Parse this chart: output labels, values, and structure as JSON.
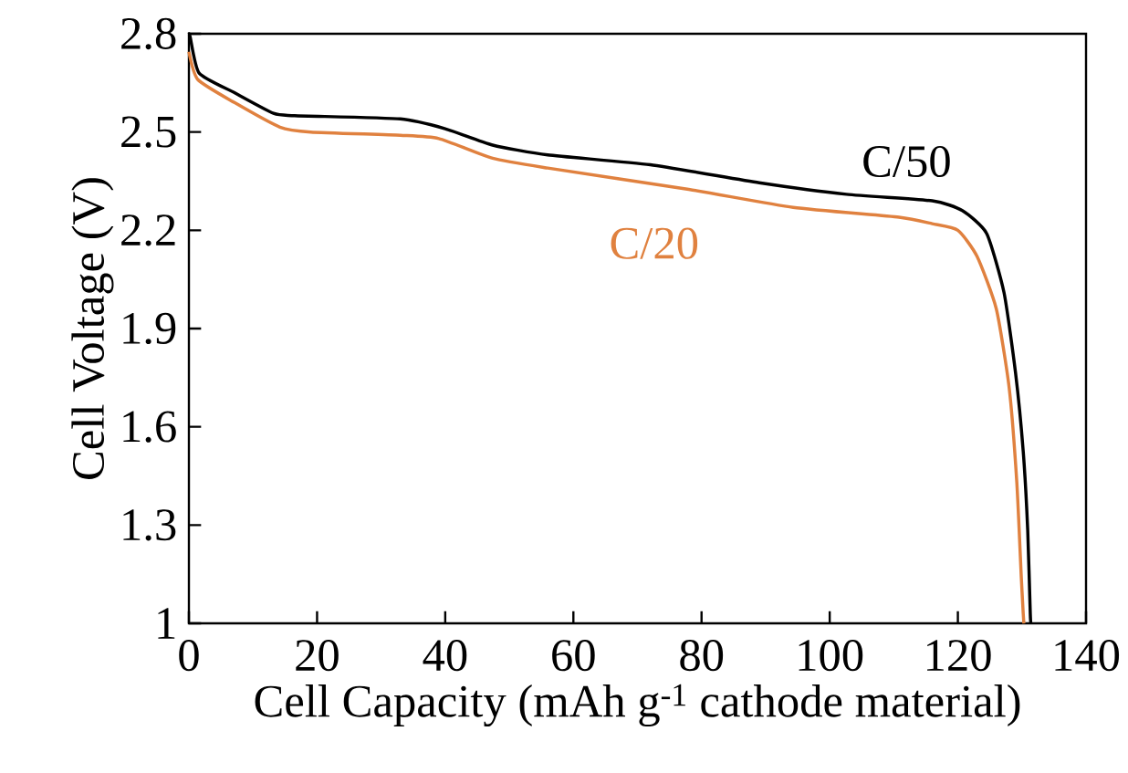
{
  "chart_data": {
    "type": "line",
    "xlabel": "Cell Capacity (mAh g$^{-1}$ cathode material)",
    "ylabel": "Cell Voltage (V)",
    "xlim": [
      0,
      140
    ],
    "ylim": [
      1,
      2.8
    ],
    "xticks": [
      0,
      20,
      40,
      60,
      80,
      100,
      120,
      140
    ],
    "yticks": [
      1,
      1.3,
      1.6,
      1.9,
      2.2,
      2.5,
      2.8
    ],
    "grid": false,
    "marker": "none",
    "line_style": "solid",
    "series": [
      {
        "name": "C/50",
        "color": "#000000",
        "x": [
          0,
          0.2,
          1.6,
          7.1,
          13.2,
          16.5,
          33,
          40,
          47.4,
          56,
          72,
          89,
          102.6,
          116,
          120.7,
          124.5,
          127.2,
          129,
          130.2,
          130.9,
          131.3,
          131.4
        ],
        "values": [
          2.8,
          2.79,
          2.68,
          2.62,
          2.557,
          2.55,
          2.54,
          2.51,
          2.46,
          2.43,
          2.4,
          2.345,
          2.31,
          2.29,
          2.26,
          2.19,
          2.01,
          1.765,
          1.525,
          1.285,
          1.03,
          1.0
        ]
      },
      {
        "name": "C/20",
        "color": "#e0813f",
        "x": [
          0,
          1.4,
          7.1,
          14.2,
          19,
          33,
          39,
          47.4,
          56,
          78,
          94.3,
          110.8,
          116,
          120,
          123,
          126,
          128,
          129.2,
          129.9,
          130.2,
          130.3
        ],
        "values": [
          2.745,
          2.66,
          2.59,
          2.515,
          2.5,
          2.49,
          2.48,
          2.42,
          2.39,
          2.325,
          2.27,
          2.24,
          2.22,
          2.2,
          2.12,
          1.96,
          1.72,
          1.43,
          1.14,
          1.03,
          1.0
        ]
      }
    ]
  }
}
